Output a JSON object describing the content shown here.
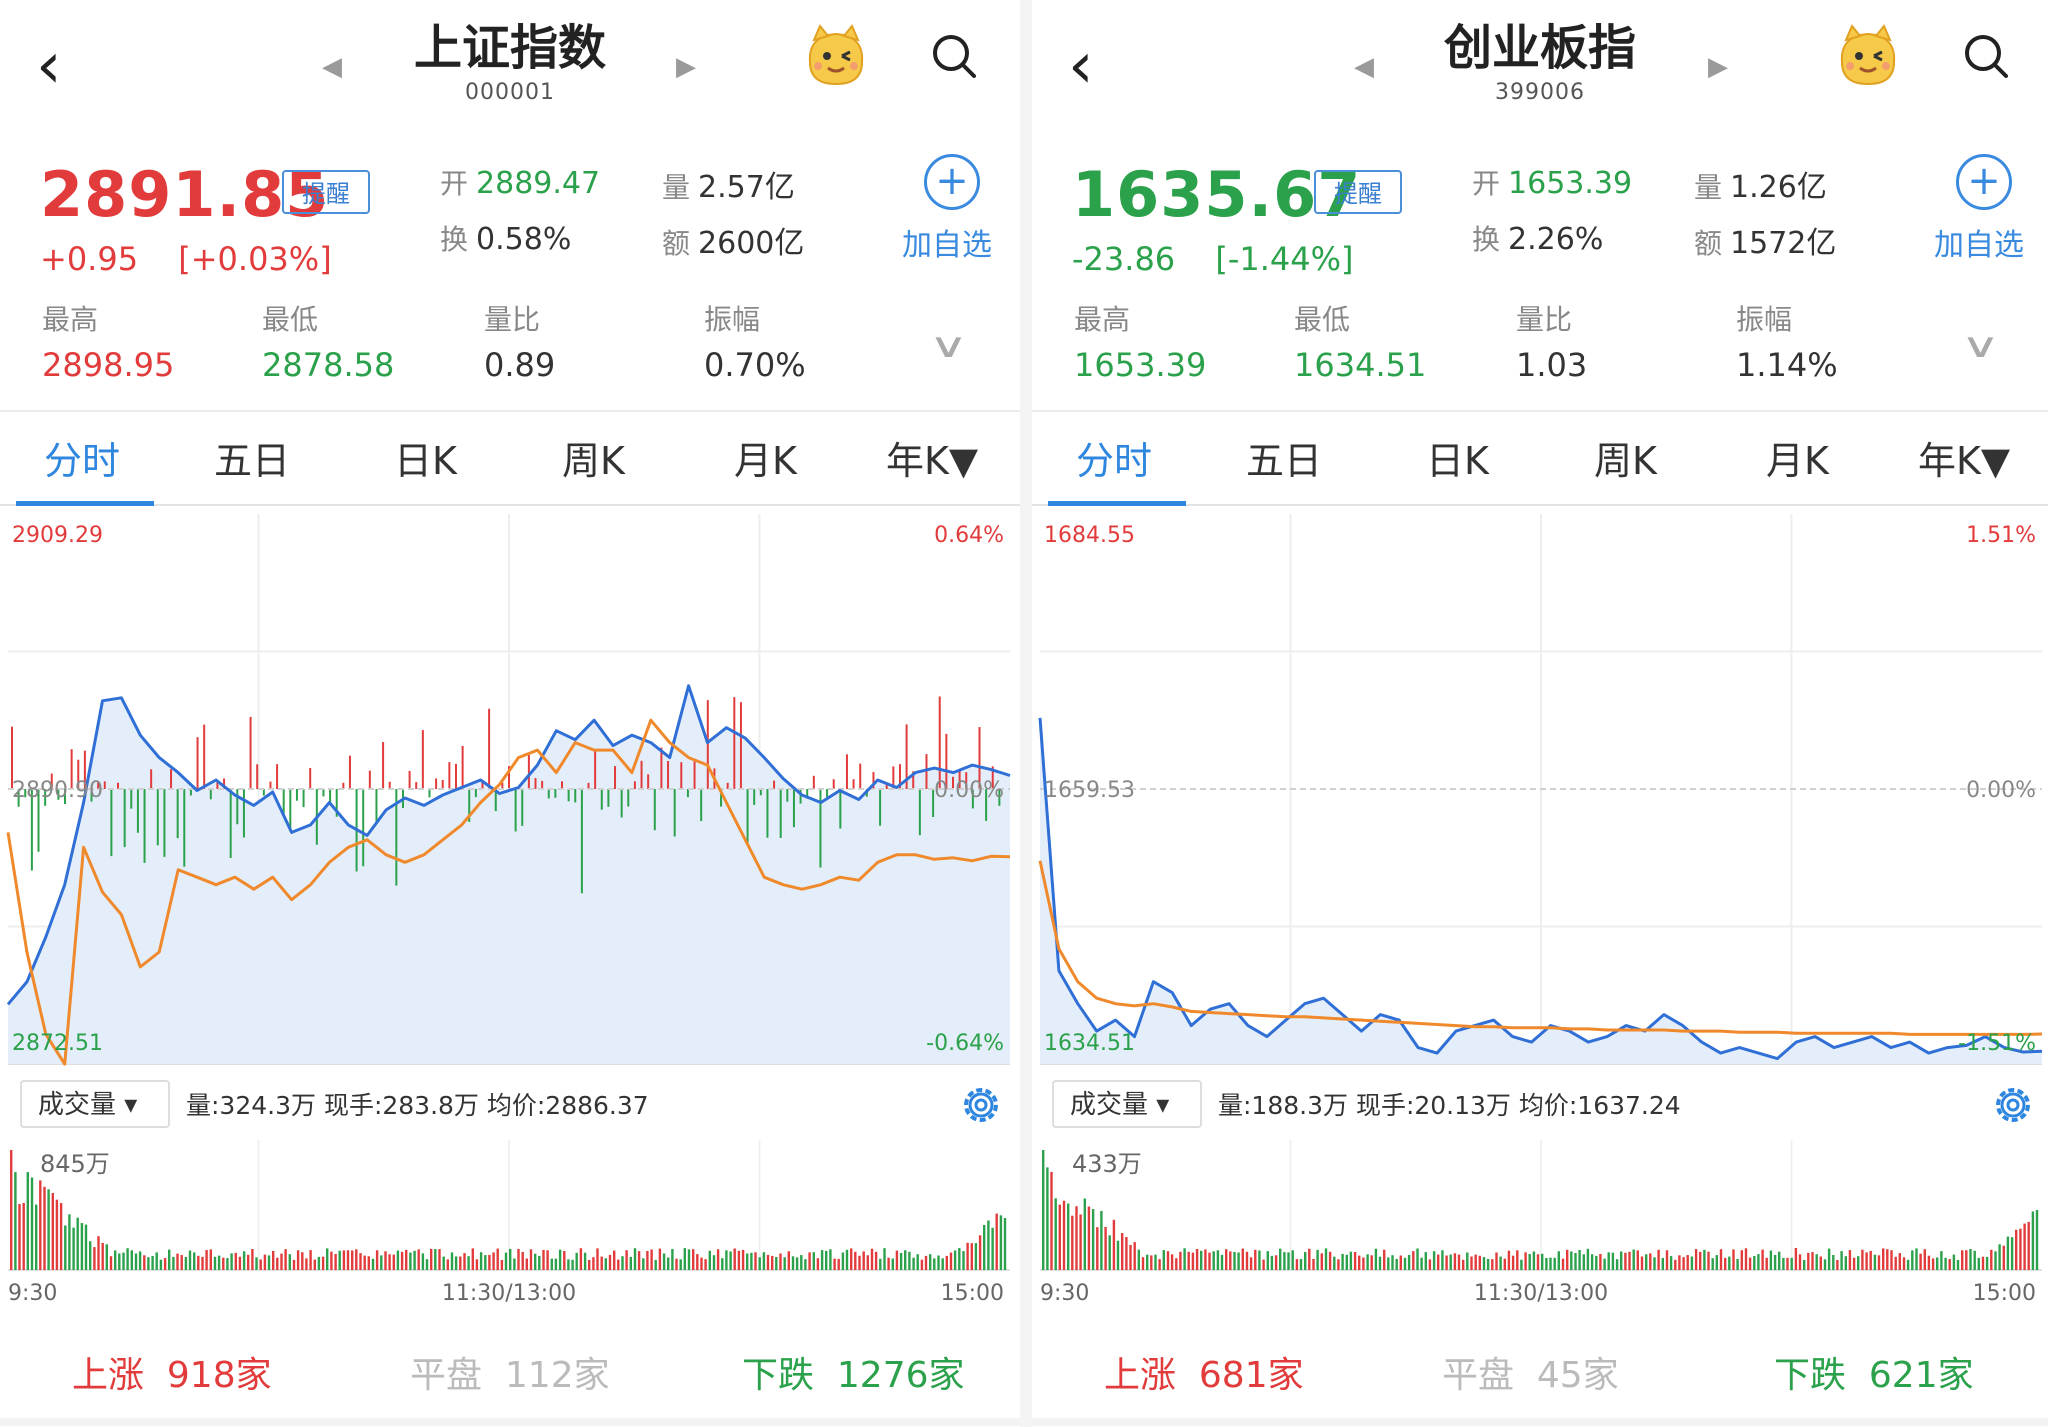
{
  "colors": {
    "up": "#e23b3b",
    "down": "#2aa14a",
    "flat": "#bbbbbb",
    "accent": "#2e86de",
    "price_line": "#2f6fd6",
    "avg_line": "#f0892b",
    "area_fill": "#e4eefb"
  },
  "icons": {
    "back": "chevron-left-icon",
    "prev": "triangle-left-icon",
    "next": "triangle-right-icon",
    "mascot": "mascot-icon",
    "search": "search-icon",
    "add": "plus-circle-icon",
    "expand": "chevron-down-icon",
    "settings": "gear-icon"
  },
  "panels": [
    {
      "name": "上证指数",
      "code": "000001",
      "price": "2891.85",
      "direction": "up",
      "change": "+0.95",
      "change_pct": "[+0.03%]",
      "alert_label": "提醒",
      "fields": [
        {
          "k": "开",
          "v": "2889.47",
          "color": "down"
        },
        {
          "k": "量",
          "v": "2.57亿",
          "color": "plain"
        },
        {
          "k": "换",
          "v": "0.58%",
          "color": "plain"
        },
        {
          "k": "额",
          "v": "2600亿",
          "color": "plain"
        }
      ],
      "add_label": "加自选",
      "stats": [
        {
          "k": "最高",
          "v": "2898.95",
          "color": "up"
        },
        {
          "k": "最低",
          "v": "2878.58",
          "color": "down"
        },
        {
          "k": "量比",
          "v": "0.89",
          "color": "plain"
        },
        {
          "k": "振幅",
          "v": "0.70%",
          "color": "plain"
        }
      ],
      "tabs": [
        "分时",
        "五日",
        "日K",
        "周K",
        "月K",
        "年K▼"
      ],
      "active_tab": 0,
      "chart": {
        "y_max_label": "2909.29",
        "y_mid_label": "2890.90",
        "y_min_label": "2872.51",
        "pct_max_label": "0.64%",
        "pct_mid_label": "0.00%",
        "pct_min_label": "-0.64%"
      },
      "volume": {
        "selector": "成交量 ▾",
        "info": "量:324.3万  现手:283.8万  均价:2886.37",
        "max_label": "845万",
        "time_start": "9:30",
        "time_mid": "11:30/13:00",
        "time_end": "15:00"
      },
      "breadth": {
        "up_label": "上涨",
        "up_count": "918家",
        "flat_label": "平盘",
        "flat_count": "112家",
        "down_label": "下跌",
        "down_count": "1276家"
      }
    },
    {
      "name": "创业板指",
      "code": "399006",
      "price": "1635.67",
      "direction": "down",
      "change": "-23.86",
      "change_pct": "[-1.44%]",
      "alert_label": "提醒",
      "fields": [
        {
          "k": "开",
          "v": "1653.39",
          "color": "down"
        },
        {
          "k": "量",
          "v": "1.26亿",
          "color": "plain"
        },
        {
          "k": "换",
          "v": "2.26%",
          "color": "plain"
        },
        {
          "k": "额",
          "v": "1572亿",
          "color": "plain"
        }
      ],
      "add_label": "加自选",
      "stats": [
        {
          "k": "最高",
          "v": "1653.39",
          "color": "down"
        },
        {
          "k": "最低",
          "v": "1634.51",
          "color": "down"
        },
        {
          "k": "量比",
          "v": "1.03",
          "color": "plain"
        },
        {
          "k": "振幅",
          "v": "1.14%",
          "color": "plain"
        }
      ],
      "tabs": [
        "分时",
        "五日",
        "日K",
        "周K",
        "月K",
        "年K▼"
      ],
      "active_tab": 0,
      "chart": {
        "y_max_label": "1684.55",
        "y_mid_label": "1659.53",
        "y_min_label": "1634.51",
        "pct_max_label": "1.51%",
        "pct_mid_label": "0.00%",
        "pct_min_label": "-1.51%"
      },
      "volume": {
        "selector": "成交量 ▾",
        "info": "量:188.3万  现手:20.13万  均价:1637.24",
        "max_label": "433万",
        "time_start": "9:30",
        "time_mid": "11:30/13:00",
        "time_end": "15:00"
      },
      "breadth": {
        "up_label": "上涨",
        "up_count": "681家",
        "flat_label": "平盘",
        "flat_count": "45家",
        "down_label": "下跌",
        "down_count": "621家"
      }
    }
  ],
  "chart_data": [
    {
      "type": "line",
      "series": [
        {
          "values": [
            2876.5,
            2878.0,
            2881.0,
            2884.5,
            2890.0,
            2896.8,
            2897.0,
            2894.5,
            2893.0,
            2892.0,
            2890.8,
            2891.5,
            2890.5,
            2889.8,
            2890.7,
            2888.0,
            2888.5,
            2890.0,
            2888.5,
            2887.8,
            2889.5,
            2890.3,
            2889.8,
            2890.5,
            2891.0,
            2891.5,
            2890.6,
            2891.0,
            2892.5,
            2894.8,
            2894.2,
            2895.5,
            2893.8,
            2894.5,
            2894.0,
            2893.0,
            2897.8,
            2894.0,
            2895.0,
            2894.3,
            2893.0,
            2891.6,
            2890.5,
            2890.0,
            2890.8,
            2890.2,
            2891.5,
            2891.0,
            2892.0,
            2892.3,
            2892.0,
            2892.5,
            2892.2,
            2891.8
          ]
        },
        {
          "values": [
            2888.0,
            2880.0,
            2874.5,
            2872.5,
            2887.0,
            2884.0,
            2882.5,
            2879.0,
            2880.0,
            2885.5,
            2885.0,
            2884.5,
            2885.0,
            2884.2,
            2885.0,
            2883.5,
            2884.5,
            2886.0,
            2887.0,
            2887.5,
            2886.5,
            2886.0,
            2886.5,
            2887.5,
            2888.5,
            2890.0,
            2891.2,
            2893.0,
            2893.5,
            2892.0,
            2894.0,
            2893.5,
            2893.5,
            2892.0,
            2895.5,
            2894.0,
            2893.0,
            2892.5,
            2890.0,
            2887.5,
            2885.0,
            2884.5,
            2884.2,
            2884.5,
            2885.0,
            2884.8,
            2886.0,
            2886.5,
            2886.5,
            2886.2,
            2886.3,
            2886.1,
            2886.4,
            2886.37
          ]
        }
      ],
      "ylim": [
        2872.51,
        2909.29
      ],
      "volume_max": "845万"
    },
    {
      "type": "line",
      "series": [
        {
          "values": [
            1666.0,
            1643.0,
            1640.0,
            1637.5,
            1638.5,
            1637.0,
            1642.0,
            1641.0,
            1638.0,
            1639.5,
            1640.0,
            1638.0,
            1637.0,
            1638.5,
            1640.0,
            1640.5,
            1639.0,
            1637.5,
            1639.0,
            1638.5,
            1636.0,
            1635.5,
            1637.5,
            1638.0,
            1638.5,
            1637.0,
            1636.5,
            1638.0,
            1637.5,
            1636.5,
            1637.0,
            1638.0,
            1637.5,
            1639.0,
            1638.0,
            1636.5,
            1635.5,
            1636.0,
            1635.5,
            1635.0,
            1636.5,
            1637.0,
            1636.0,
            1636.5,
            1637.0,
            1636.0,
            1636.5,
            1635.5,
            1636.0,
            1636.2,
            1637.0,
            1636.0,
            1635.6,
            1635.67
          ]
        },
        {
          "values": [
            1653.0,
            1645.0,
            1642.0,
            1640.5,
            1640.0,
            1639.8,
            1640.0,
            1639.7,
            1639.3,
            1639.2,
            1639.1,
            1639.0,
            1638.9,
            1638.8,
            1638.8,
            1638.7,
            1638.6,
            1638.5,
            1638.4,
            1638.3,
            1638.2,
            1638.1,
            1638.0,
            1637.9,
            1637.9,
            1637.8,
            1637.8,
            1637.8,
            1637.7,
            1637.7,
            1637.6,
            1637.6,
            1637.6,
            1637.6,
            1637.5,
            1637.5,
            1637.5,
            1637.4,
            1637.4,
            1637.4,
            1637.3,
            1637.3,
            1637.3,
            1637.3,
            1637.3,
            1637.3,
            1637.2,
            1637.2,
            1637.2,
            1637.2,
            1637.2,
            1637.2,
            1637.2,
            1637.24
          ]
        }
      ],
      "ylim": [
        1634.51,
        1684.55
      ],
      "volume_max": "433万"
    }
  ]
}
